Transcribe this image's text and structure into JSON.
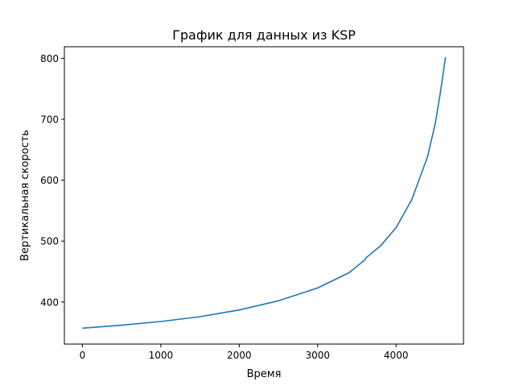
{
  "chart_data": {
    "type": "line",
    "title": "График для данных из KSP",
    "xlabel": "Время",
    "ylabel": "Вертикальная скорость",
    "xlim": [
      -230,
      4860
    ],
    "ylim": [
      331,
      819
    ],
    "xticks": [
      0,
      1000,
      2000,
      3000,
      4000
    ],
    "yticks": [
      400,
      500,
      600,
      700,
      800
    ],
    "grid": false,
    "legend": "none",
    "series": [
      {
        "color": "#1f77b4",
        "x": [
          0,
          500,
          1000,
          1500,
          2000,
          2500,
          3000,
          3400,
          3600,
          3620,
          3800,
          4000,
          4200,
          4400,
          4500,
          4560,
          4600,
          4630
        ],
        "values": [
          357,
          362,
          368,
          376,
          387,
          402,
          423,
          448,
          469,
          473,
          492,
          522,
          568,
          638,
          693,
          740,
          775,
          802
        ]
      }
    ]
  }
}
